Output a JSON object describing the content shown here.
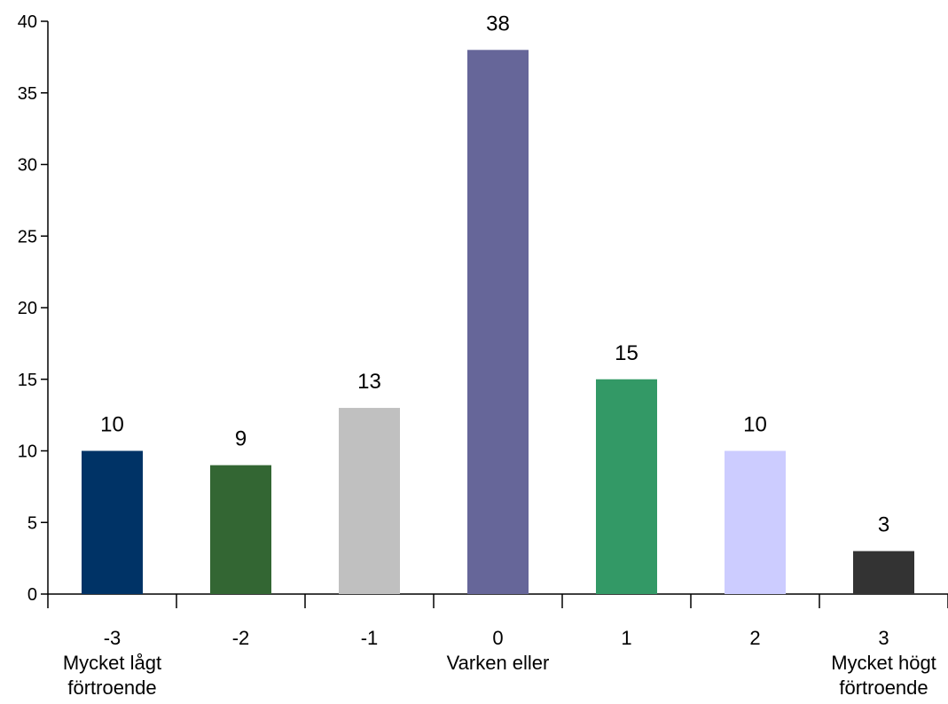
{
  "chart_data": {
    "type": "bar",
    "title": "",
    "xlabel": "",
    "ylabel": "",
    "categories": [
      "-3",
      "-2",
      "-1",
      "0",
      "1",
      "2",
      "3"
    ],
    "category_sublabels": [
      [
        "Mycket lågt",
        "förtroende"
      ],
      [],
      [],
      [
        "Varken eller"
      ],
      [],
      [],
      [
        "Mycket högt",
        "förtroende"
      ]
    ],
    "values": [
      10,
      9,
      13,
      38,
      15,
      10,
      3
    ],
    "data_labels": [
      "10",
      "9",
      "13",
      "38",
      "15",
      "10",
      "3"
    ],
    "bar_colors": [
      "#003366",
      "#336633",
      "#c0c0c0",
      "#666699",
      "#339966",
      "#ccccff",
      "#333333"
    ],
    "ylim": [
      0,
      40
    ],
    "yticks": [
      0,
      5,
      10,
      15,
      20,
      25,
      30,
      35,
      40
    ],
    "grid": false,
    "legend": "none"
  }
}
